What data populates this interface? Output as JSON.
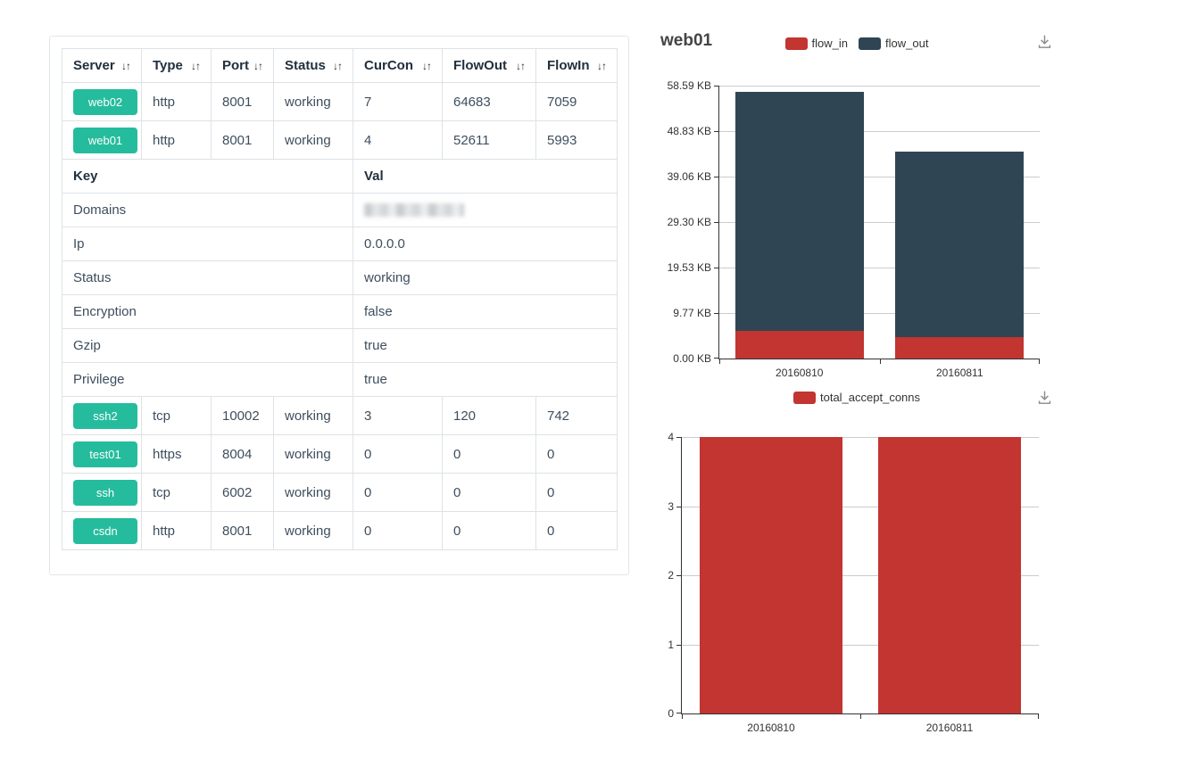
{
  "left_panel": {
    "sort_icon": "↓↑",
    "columns": [
      "Server",
      "Type",
      "Port",
      "Status",
      "CurCon",
      "FlowOut",
      "FlowIn"
    ],
    "badge_color": "#25bc9d",
    "rows_top": [
      [
        "web02",
        "http",
        "8001",
        "working",
        "7",
        "64683",
        "7059"
      ],
      [
        "web01",
        "http",
        "8001",
        "working",
        "4",
        "52611",
        "5993"
      ]
    ],
    "detail": {
      "key_header": "Key",
      "val_header": "Val",
      "rows": [
        {
          "key": "Domains",
          "val": "",
          "redacted": true
        },
        {
          "key": "Ip",
          "val": "0.0.0.0",
          "redacted": false
        },
        {
          "key": "Status",
          "val": "working",
          "redacted": false
        },
        {
          "key": "Encryption",
          "val": "false",
          "redacted": false
        },
        {
          "key": "Gzip",
          "val": "true",
          "redacted": false
        },
        {
          "key": "Privilege",
          "val": "true",
          "redacted": false
        }
      ]
    },
    "rows_bottom": [
      [
        "ssh2",
        "tcp",
        "10002",
        "working",
        "3",
        "120",
        "742"
      ],
      [
        "test01",
        "https",
        "8004",
        "working",
        "0",
        "0",
        "0"
      ],
      [
        "ssh",
        "tcp",
        "6002",
        "working",
        "0",
        "0",
        "0"
      ],
      [
        "csdn",
        "http",
        "8001",
        "working",
        "0",
        "0",
        "0"
      ]
    ]
  },
  "chart_data": [
    {
      "type": "bar",
      "stacked": true,
      "title": "web01",
      "categories": [
        "20160810",
        "20160811"
      ],
      "series": [
        {
          "name": "flow_in",
          "color": "#c23531",
          "values": [
            5.85,
            4.55
          ]
        },
        {
          "name": "flow_out",
          "color": "#2f4554",
          "values": [
            51.38,
            39.89
          ]
        }
      ],
      "unit": "KB",
      "ymax": 58.59,
      "y_tick_labels": [
        "58.59 KB",
        "48.83 KB",
        "39.06 KB",
        "29.30 KB",
        "19.53 KB",
        "9.77 KB",
        "0.00 KB"
      ],
      "legend": [
        "flow_in",
        "flow_out"
      ],
      "legend_position": "top-center",
      "grid": true
    },
    {
      "type": "bar",
      "stacked": false,
      "title": "",
      "categories": [
        "20160810",
        "20160811"
      ],
      "series": [
        {
          "name": "total_accept_conns",
          "color": "#c23531",
          "values": [
            4,
            4
          ]
        }
      ],
      "unit": "",
      "ymax": 4,
      "y_tick_labels": [
        "4",
        "3",
        "2",
        "1",
        "0"
      ],
      "legend": [
        "total_accept_conns"
      ],
      "legend_position": "top-center",
      "grid": true
    }
  ]
}
